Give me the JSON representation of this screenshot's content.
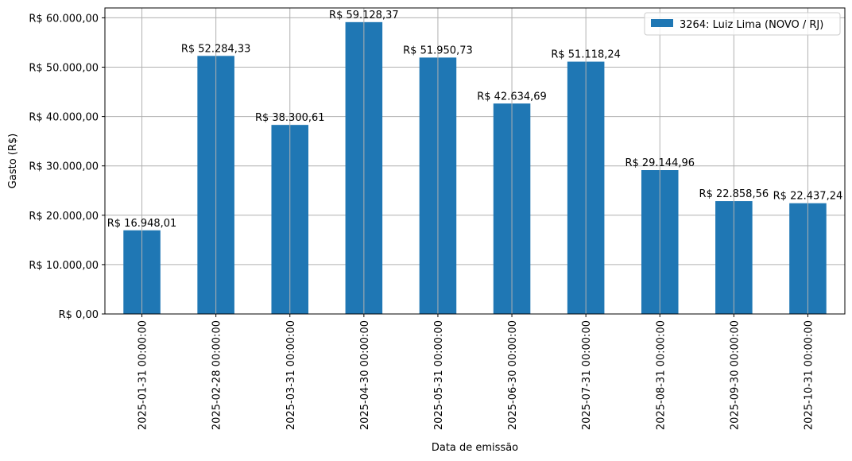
{
  "chart_data": {
    "type": "bar",
    "categories": [
      "2025-01-31 00:00:00",
      "2025-02-28 00:00:00",
      "2025-03-31 00:00:00",
      "2025-04-30 00:00:00",
      "2025-05-31 00:00:00",
      "2025-06-30 00:00:00",
      "2025-07-31 00:00:00",
      "2025-08-31 00:00:00",
      "2025-09-30 00:00:00",
      "2025-10-31 00:00:00"
    ],
    "series": [
      {
        "name": "3264: Luiz Lima (NOVO / RJ)",
        "color": "#1f77b4",
        "values": [
          16948.01,
          52284.33,
          38300.61,
          59128.37,
          51950.73,
          42634.69,
          51118.24,
          29144.96,
          22858.56,
          22437.24
        ],
        "data_labels": [
          "R$ 16.948,01",
          "R$ 52.284,33",
          "R$ 38.300,61",
          "R$ 59.128,37",
          "R$ 51.950,73",
          "R$ 42.634,69",
          "R$ 51.118,24",
          "R$ 29.144,96",
          "R$ 22.858,56",
          "R$ 22.437,24"
        ]
      }
    ],
    "xlabel": "Data de emissão",
    "ylabel": "Gasto (R$)",
    "ylim": [
      0,
      62000
    ],
    "yticks": [
      0,
      10000,
      20000,
      30000,
      40000,
      50000,
      60000
    ],
    "ytick_labels": [
      "R$ 0,00",
      "R$ 10.000,00",
      "R$ 20.000,00",
      "R$ 30.000,00",
      "R$ 40.000,00",
      "R$ 50.000,00",
      "R$ 60.000,00"
    ],
    "grid": true,
    "legend_position": "top-right"
  }
}
